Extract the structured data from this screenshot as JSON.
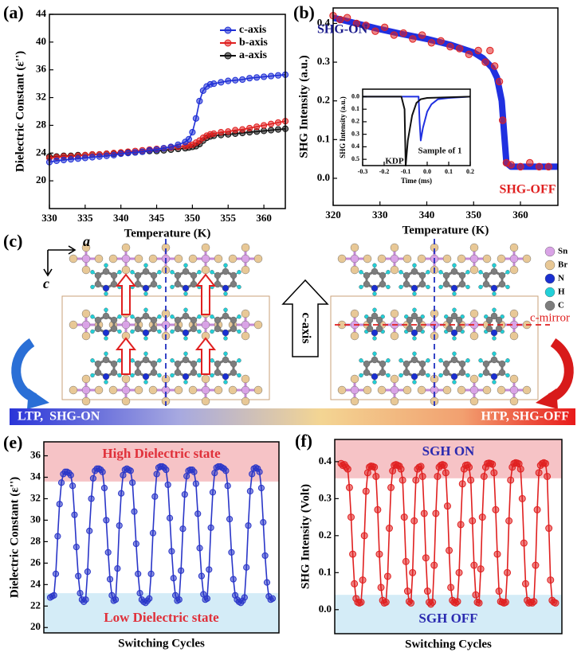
{
  "chart_data": [
    {
      "type": "line",
      "label": "(a)",
      "xlabel": "Temperature (K)",
      "ylabel": "Dielectric Constant (ε'')",
      "xlim": [
        330,
        363
      ],
      "xticks": [
        330,
        335,
        340,
        345,
        350,
        355,
        360
      ],
      "ylim": [
        16,
        44
      ],
      "yticks": [
        20,
        24,
        28,
        32,
        36,
        40,
        44
      ],
      "legend": "upper right",
      "x": [
        330,
        331,
        332,
        333,
        334,
        335,
        336,
        337,
        338,
        339,
        340,
        341,
        342,
        343,
        344,
        345,
        346,
        347,
        348,
        349,
        349.5,
        350,
        350.5,
        351,
        351.5,
        352,
        352.5,
        353,
        354,
        355,
        356,
        357,
        358,
        359,
        360,
        361,
        362,
        363
      ],
      "series": [
        {
          "name": "c-axis",
          "color": "#1f2fd6",
          "mode": "markers+line",
          "values": [
            22.7,
            22.9,
            23.0,
            23.1,
            23.2,
            23.3,
            23.4,
            23.5,
            23.6,
            23.7,
            23.9,
            24.0,
            24.1,
            24.2,
            24.4,
            24.5,
            24.7,
            24.9,
            25.2,
            25.6,
            26.0,
            27.0,
            29.0,
            31.5,
            33.0,
            33.6,
            33.9,
            34.0,
            34.2,
            34.4,
            34.5,
            34.6,
            34.8,
            34.9,
            35.0,
            35.1,
            35.2,
            35.3
          ]
        },
        {
          "name": "b-axis",
          "color": "#e02020",
          "mode": "markers+line",
          "values": [
            23.3,
            23.4,
            23.5,
            23.5,
            23.6,
            23.7,
            23.8,
            23.8,
            23.9,
            24.0,
            24.1,
            24.2,
            24.3,
            24.4,
            24.5,
            24.6,
            24.7,
            24.8,
            24.9,
            25.0,
            25.1,
            25.2,
            25.5,
            25.8,
            26.2,
            26.5,
            26.7,
            26.8,
            27.0,
            27.1,
            27.3,
            27.4,
            27.6,
            27.8,
            28.0,
            28.2,
            28.4,
            28.6
          ]
        },
        {
          "name": "a-axis",
          "color": "#111111",
          "mode": "markers+line",
          "values": [
            23.5,
            23.5,
            23.6,
            23.6,
            23.7,
            23.7,
            23.8,
            23.8,
            23.9,
            23.9,
            24.0,
            24.1,
            24.1,
            24.2,
            24.3,
            24.3,
            24.4,
            24.5,
            24.6,
            24.7,
            24.8,
            24.9,
            25.0,
            25.3,
            25.8,
            26.2,
            26.4,
            26.5,
            26.6,
            26.7,
            26.8,
            26.9,
            27.0,
            27.1,
            27.2,
            27.3,
            27.4,
            27.5
          ]
        }
      ]
    },
    {
      "type": "line",
      "label": "(b)",
      "xlabel": "Temperature (K)",
      "ylabel": "SHG Intensity (a.u.)",
      "xlim": [
        320,
        368
      ],
      "xticks": [
        320,
        330,
        340,
        350,
        360
      ],
      "ylim": [
        -0.07,
        0.44
      ],
      "yticks": [
        {
          "value": 0,
          "label": "0.0"
        },
        0.1,
        0.2,
        0.3,
        0.4
      ],
      "annotations": [
        {
          "text": "SHG-ON",
          "color": "#1a1a8c"
        },
        {
          "text": "SHG-OFF",
          "color": "#e02020"
        }
      ],
      "series": [
        {
          "color": "#e02020",
          "mode": "markers",
          "x": [
            320,
            321.5,
            323,
            325,
            327,
            329,
            331,
            333,
            335,
            337,
            339,
            341,
            343,
            345,
            347,
            349,
            351,
            352.5,
            353.5,
            354.5,
            355.5,
            356.2,
            357,
            358,
            360,
            362,
            364,
            366
          ],
          "values": [
            0.42,
            0.41,
            0.415,
            0.4,
            0.395,
            0.38,
            0.39,
            0.37,
            0.375,
            0.36,
            0.37,
            0.35,
            0.355,
            0.34,
            0.335,
            0.32,
            0.33,
            0.3,
            0.33,
            0.29,
            0.25,
            0.15,
            0.04,
            0.035,
            0.03,
            0.04,
            0.03,
            0.03
          ]
        },
        {
          "color": "#2030e0",
          "mode": "line",
          "x": [
            320,
            325,
            330,
            335,
            340,
            345,
            350,
            352,
            354,
            355,
            356,
            356.5,
            357,
            358,
            360,
            365,
            368
          ],
          "values": [
            0.415,
            0.4,
            0.385,
            0.372,
            0.36,
            0.345,
            0.325,
            0.31,
            0.285,
            0.26,
            0.2,
            0.12,
            0.04,
            0.03,
            0.03,
            0.03,
            0.03
          ]
        }
      ],
      "inset": {
        "type": "line",
        "xlabel": "Time (ms)",
        "ylabel": "SHG Intensity (a.u.)",
        "xlim": [
          -0.3,
          0.2
        ],
        "xticks": [
          -0.3,
          -0.2,
          -0.1,
          {
            "value": 0,
            "label": "0.0"
          },
          0.1,
          0.2
        ],
        "ylim": [
          -0.06,
          0.55
        ],
        "y_inverted": true,
        "yticks": [
          {
            "value": 0,
            "label": "0.0"
          },
          0.1,
          0.2,
          0.3,
          0.4,
          0.5
        ],
        "annotations": [
          {
            "text": "KDP",
            "color": "#111111"
          },
          {
            "text": "Sample of 1",
            "color": "#111111"
          }
        ],
        "series": [
          {
            "color": "#111111",
            "mode": "line",
            "x": [
              -0.3,
              -0.12,
              -0.105,
              -0.1,
              -0.09,
              -0.07,
              -0.05,
              -0.03,
              0,
              0.2
            ],
            "values": [
              0,
              0,
              0.1,
              0.55,
              0.35,
              0.15,
              0.05,
              0.02,
              0.01,
              0
            ]
          },
          {
            "color": "#2030e0",
            "mode": "line",
            "x": [
              -0.3,
              -0.04,
              -0.035,
              -0.03,
              -0.02,
              0,
              0.02,
              0.05,
              0.1,
              0.2
            ],
            "values": [
              0,
              0,
              0.2,
              0.35,
              0.25,
              0.12,
              0.06,
              0.02,
              0.01,
              0
            ]
          }
        ]
      }
    },
    {
      "type": "line",
      "label": "(e)",
      "xlabel": "Switching Cycles",
      "ylabel": "Dielectric Constant (ε'')",
      "ylim": [
        19.5,
        37.3
      ],
      "yticks": [
        20,
        22,
        24,
        26,
        28,
        30,
        32,
        34,
        36
      ],
      "bands": [
        {
          "label": "High Dielectric state",
          "from": 33.6,
          "to": 37.3,
          "color": "#f6c3c6",
          "label_color": "#e0303a"
        },
        {
          "label": "Low Dielectric state",
          "from": 19.5,
          "to": 23.2,
          "color": "#d4ecf7",
          "label_color": "#e0303a"
        }
      ],
      "series": [
        {
          "color": "#2a36c8",
          "mode": "markers+line",
          "values": [
            22.8,
            22.9,
            23.0,
            25.0,
            28.5,
            31.5,
            33.5,
            34.3,
            34.5,
            34.5,
            34.4,
            34.2,
            33.2,
            30.5,
            27.5,
            24.8,
            23.2,
            22.6,
            22.4,
            22.6,
            25.2,
            29.0,
            32.0,
            33.9,
            34.6,
            34.8,
            34.8,
            34.7,
            34.5,
            33.0,
            30.0,
            27.0,
            24.5,
            23.0,
            22.5,
            22.6,
            25.5,
            29.5,
            32.5,
            34.2,
            34.7,
            34.8,
            34.7,
            34.6,
            33.5,
            30.8,
            27.8,
            25.0,
            23.2,
            22.6,
            22.4,
            22.3,
            22.5,
            22.7,
            25.0,
            28.8,
            32.2,
            34.3,
            34.9,
            35.0,
            35.0,
            34.9,
            34.7,
            33.3,
            30.2,
            27.1,
            24.6,
            23.0,
            22.5,
            22.6,
            25.3,
            29.2,
            32.4,
            34.1,
            34.6,
            34.7,
            34.7,
            34.5,
            33.4,
            30.6,
            27.4,
            24.8,
            23.1,
            22.6,
            22.7,
            25.4,
            29.3,
            32.6,
            34.4,
            34.9,
            35.0,
            35.0,
            34.9,
            34.8,
            34.6,
            33.2,
            30.1,
            27.0,
            24.5,
            23.0,
            22.6,
            22.4,
            22.3,
            22.5,
            22.8,
            25.6,
            29.5,
            32.7,
            34.3,
            34.8,
            34.9,
            34.8,
            34.5,
            33.0,
            29.8,
            26.7,
            24.2,
            22.9,
            22.6,
            22.7
          ]
        }
      ]
    },
    {
      "type": "line",
      "label": "(f)",
      "xlabel": "Switching Cycles",
      "ylabel": "SHG Intensity (Volt)",
      "ylim": [
        -0.065,
        0.46
      ],
      "yticks": [
        {
          "value": 0,
          "label": "0.0"
        },
        0.1,
        0.2,
        0.3,
        0.4
      ],
      "bands": [
        {
          "label": "SGH ON",
          "from": 0.355,
          "to": 0.46,
          "color": "#f6c3c6",
          "label_color": "#2a2ab0"
        },
        {
          "label": "SGH OFF",
          "from": -0.065,
          "to": 0.04,
          "color": "#d4ecf7",
          "label_color": "#2a2ab0"
        }
      ],
      "series": [
        {
          "color": "#e02020",
          "mode": "markers+line",
          "values": [
            0.395,
            0.39,
            0.392,
            0.385,
            0.38,
            0.33,
            0.25,
            0.15,
            0.07,
            0.03,
            0.02,
            0.018,
            0.02,
            0.08,
            0.2,
            0.32,
            0.37,
            0.385,
            0.388,
            0.387,
            0.385,
            0.36,
            0.27,
            0.15,
            0.06,
            0.025,
            0.018,
            0.02,
            0.09,
            0.22,
            0.33,
            0.375,
            0.39,
            0.392,
            0.39,
            0.388,
            0.38,
            0.35,
            0.25,
            0.13,
            0.05,
            0.022,
            0.018,
            0.1,
            0.24,
            0.35,
            0.38,
            0.385,
            0.387,
            0.36,
            0.26,
            0.14,
            0.05,
            0.02,
            0.015,
            0.02,
            0.12,
            0.26,
            0.36,
            0.385,
            0.39,
            0.392,
            0.39,
            0.37,
            0.28,
            0.16,
            0.06,
            0.025,
            0.02,
            0.018,
            0.022,
            0.1,
            0.23,
            0.34,
            0.38,
            0.39,
            0.391,
            0.385,
            0.35,
            0.24,
            0.12,
            0.04,
            0.02,
            0.018,
            0.11,
            0.25,
            0.36,
            0.385,
            0.395,
            0.396,
            0.395,
            0.393,
            0.37,
            0.27,
            0.15,
            0.05,
            0.022,
            0.02,
            0.018,
            0.02,
            0.1,
            0.24,
            0.35,
            0.385,
            0.395,
            0.397,
            0.396,
            0.394,
            0.38,
            0.3,
            0.18,
            0.07,
            0.025,
            0.018,
            0.02,
            0.018,
            0.022,
            0.12,
            0.27,
            0.37,
            0.39,
            0.395,
            0.397,
            0.395,
            0.36,
            0.22,
            0.08,
            0.025,
            0.02,
            0.018
          ]
        }
      ]
    }
  ],
  "diagram": {
    "label": "(c)",
    "axes": [
      "a",
      "c"
    ],
    "arrow_label": "c-axis",
    "mirror_label": "c-mirror",
    "legend": [
      {
        "label": "Sn",
        "color": "#d9a3e6"
      },
      {
        "label": "Br",
        "color": "#e8c896"
      },
      {
        "label": "N",
        "color": "#1a2fd0"
      },
      {
        "label": "H",
        "color": "#22d0d8"
      },
      {
        "label": "C",
        "color": "#7d7d7d"
      }
    ],
    "phase_bar": [
      "LTP,  SHG-ON",
      "HTP, SHG-OFF"
    ]
  }
}
